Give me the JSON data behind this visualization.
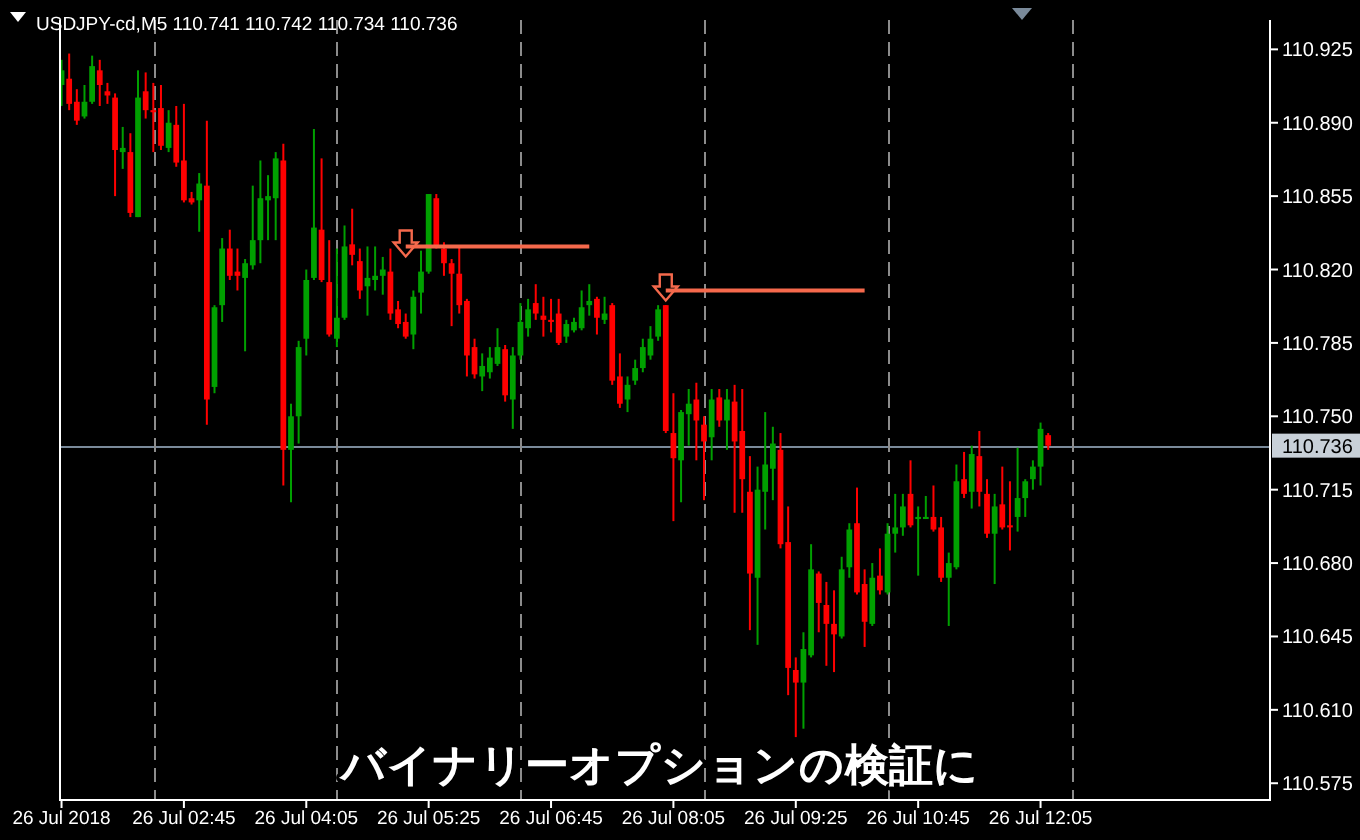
{
  "chart_data": {
    "type": "candlestick",
    "title": "USDJPY-cd,M5  110.741 110.742 110.734 110.736",
    "annotations": [
      "バイナリーオプションの検証に"
    ],
    "x": [
      "2018-07-26T01:25",
      "2018-07-26T01:30",
      "2018-07-26T01:35",
      "2018-07-26T01:40",
      "2018-07-26T01:45",
      "2018-07-26T01:50",
      "2018-07-26T01:55",
      "2018-07-26T02:00",
      "2018-07-26T02:05",
      "2018-07-26T02:10",
      "2018-07-26T02:15",
      "2018-07-26T02:20",
      "2018-07-26T02:25",
      "2018-07-26T02:30",
      "2018-07-26T02:35",
      "2018-07-26T02:40",
      "2018-07-26T02:45",
      "2018-07-26T02:50",
      "2018-07-26T02:55",
      "2018-07-26T03:00",
      "2018-07-26T03:05",
      "2018-07-26T03:10",
      "2018-07-26T03:15",
      "2018-07-26T03:20",
      "2018-07-26T03:25",
      "2018-07-26T03:30",
      "2018-07-26T03:35",
      "2018-07-26T03:40",
      "2018-07-26T03:45",
      "2018-07-26T03:50",
      "2018-07-26T03:55",
      "2018-07-26T04:00",
      "2018-07-26T04:05",
      "2018-07-26T04:10",
      "2018-07-26T04:15",
      "2018-07-26T04:20",
      "2018-07-26T04:25",
      "2018-07-26T04:30",
      "2018-07-26T04:35",
      "2018-07-26T04:40",
      "2018-07-26T04:45",
      "2018-07-26T04:50",
      "2018-07-26T04:55",
      "2018-07-26T05:00",
      "2018-07-26T05:05",
      "2018-07-26T05:10",
      "2018-07-26T05:15",
      "2018-07-26T05:20",
      "2018-07-26T05:25",
      "2018-07-26T05:30",
      "2018-07-26T05:35",
      "2018-07-26T05:40",
      "2018-07-26T05:45",
      "2018-07-26T05:50",
      "2018-07-26T05:55",
      "2018-07-26T06:00",
      "2018-07-26T06:05",
      "2018-07-26T06:10",
      "2018-07-26T06:15",
      "2018-07-26T06:20",
      "2018-07-26T06:25",
      "2018-07-26T06:30",
      "2018-07-26T06:35",
      "2018-07-26T06:40",
      "2018-07-26T06:45",
      "2018-07-26T06:50",
      "2018-07-26T06:55",
      "2018-07-26T07:00",
      "2018-07-26T07:05",
      "2018-07-26T07:10",
      "2018-07-26T07:15",
      "2018-07-26T07:20",
      "2018-07-26T07:25",
      "2018-07-26T07:30",
      "2018-07-26T07:35",
      "2018-07-26T07:40",
      "2018-07-26T07:45",
      "2018-07-26T07:50",
      "2018-07-26T07:55",
      "2018-07-26T08:00",
      "2018-07-26T08:05",
      "2018-07-26T08:10",
      "2018-07-26T08:15",
      "2018-07-26T08:20",
      "2018-07-26T08:25",
      "2018-07-26T08:30",
      "2018-07-26T08:35",
      "2018-07-26T08:40",
      "2018-07-26T08:45",
      "2018-07-26T08:50",
      "2018-07-26T08:55",
      "2018-07-26T09:00",
      "2018-07-26T09:05",
      "2018-07-26T09:10",
      "2018-07-26T09:15",
      "2018-07-26T09:20",
      "2018-07-26T09:25",
      "2018-07-26T09:30",
      "2018-07-26T09:35",
      "2018-07-26T09:40",
      "2018-07-26T09:45",
      "2018-07-26T09:50",
      "2018-07-26T09:55",
      "2018-07-26T10:00",
      "2018-07-26T10:05",
      "2018-07-26T10:10",
      "2018-07-26T10:15",
      "2018-07-26T10:20",
      "2018-07-26T10:25",
      "2018-07-26T10:30",
      "2018-07-26T10:35",
      "2018-07-26T10:40",
      "2018-07-26T10:45",
      "2018-07-26T10:50",
      "2018-07-26T10:55",
      "2018-07-26T11:00",
      "2018-07-26T11:05",
      "2018-07-26T11:10",
      "2018-07-26T11:15",
      "2018-07-26T11:20",
      "2018-07-26T11:25",
      "2018-07-26T11:30",
      "2018-07-26T11:35",
      "2018-07-26T11:40",
      "2018-07-26T11:45",
      "2018-07-26T11:50",
      "2018-07-26T11:55",
      "2018-07-26T12:00",
      "2018-07-26T12:05",
      "2018-07-26T12:10"
    ],
    "ohlc": [
      [
        110.908,
        110.92,
        110.898,
        110.915
      ],
      [
        110.911,
        110.923,
        110.896,
        110.899
      ],
      [
        110.9,
        110.906,
        110.889,
        110.891
      ],
      [
        110.893,
        110.908,
        110.892,
        110.9
      ],
      [
        110.9,
        110.922,
        110.899,
        110.917
      ],
      [
        110.915,
        110.92,
        110.898,
        110.908
      ],
      [
        110.905,
        110.909,
        110.899,
        110.903
      ],
      [
        110.902,
        110.904,
        110.855,
        110.877
      ],
      [
        110.876,
        110.888,
        110.868,
        110.878
      ],
      [
        110.876,
        110.885,
        110.845,
        110.847
      ],
      [
        110.845,
        110.915,
        110.845,
        110.902
      ],
      [
        110.905,
        110.914,
        110.892,
        110.896
      ],
      [
        110.896,
        110.909,
        110.876,
        110.895
      ],
      [
        110.897,
        110.908,
        110.877,
        110.879
      ],
      [
        110.878,
        110.896,
        110.876,
        110.89
      ],
      [
        110.889,
        110.898,
        110.869,
        110.871
      ],
      [
        110.872,
        110.899,
        110.852,
        110.853
      ],
      [
        110.854,
        110.857,
        110.851,
        110.852
      ],
      [
        110.853,
        110.866,
        110.838,
        110.861
      ],
      [
        110.86,
        110.891,
        110.746,
        110.758
      ],
      [
        110.764,
        110.803,
        110.761,
        110.802
      ],
      [
        110.803,
        110.835,
        110.795,
        110.83
      ],
      [
        110.83,
        110.839,
        110.815,
        110.817
      ],
      [
        110.819,
        110.83,
        110.81,
        110.817
      ],
      [
        110.816,
        110.825,
        110.781,
        110.823
      ],
      [
        110.822,
        110.86,
        110.82,
        110.834
      ],
      [
        110.834,
        110.872,
        110.823,
        110.854
      ],
      [
        110.853,
        110.865,
        110.834,
        110.855
      ],
      [
        110.854,
        110.876,
        110.834,
        110.873
      ],
      [
        110.872,
        110.88,
        110.717,
        110.734
      ],
      [
        110.734,
        110.756,
        110.709,
        110.75
      ],
      [
        110.75,
        110.786,
        110.737,
        110.783
      ],
      [
        110.787,
        110.82,
        110.779,
        110.815
      ],
      [
        110.816,
        110.887,
        110.815,
        110.84
      ],
      [
        110.839,
        110.873,
        110.814,
        110.815
      ],
      [
        110.814,
        110.834,
        110.788,
        110.789
      ],
      [
        110.787,
        110.83,
        110.783,
        110.797
      ],
      [
        110.797,
        110.841,
        110.796,
        110.831
      ],
      [
        110.832,
        110.849,
        110.822,
        110.827
      ],
      [
        110.824,
        110.83,
        110.806,
        110.81
      ],
      [
        110.812,
        110.831,
        110.798,
        110.816
      ],
      [
        110.815,
        110.831,
        110.81,
        110.817
      ],
      [
        110.817,
        110.826,
        110.808,
        110.82
      ],
      [
        110.819,
        110.83,
        110.796,
        110.799
      ],
      [
        110.801,
        110.805,
        110.792,
        110.794
      ],
      [
        110.795,
        110.799,
        110.787,
        110.788
      ],
      [
        110.789,
        110.81,
        110.782,
        110.807
      ],
      [
        110.809,
        110.829,
        110.799,
        110.819
      ],
      [
        110.819,
        110.856,
        110.818,
        110.856
      ],
      [
        110.854,
        110.856,
        110.83,
        110.831
      ],
      [
        110.83,
        110.833,
        110.817,
        110.823
      ],
      [
        110.823,
        110.825,
        110.793,
        110.818
      ],
      [
        110.818,
        110.831,
        110.799,
        110.803
      ],
      [
        110.805,
        110.806,
        110.769,
        110.779
      ],
      [
        110.783,
        110.787,
        110.768,
        110.77
      ],
      [
        110.769,
        110.78,
        110.762,
        110.774
      ],
      [
        110.771,
        110.783,
        110.768,
        110.778
      ],
      [
        110.775,
        110.792,
        110.774,
        110.783
      ],
      [
        110.782,
        110.784,
        110.757,
        110.76
      ],
      [
        110.758,
        110.783,
        110.744,
        110.779
      ],
      [
        110.779,
        110.804,
        110.777,
        110.795
      ],
      [
        110.792,
        110.806,
        110.788,
        110.801
      ],
      [
        110.804,
        110.813,
        110.796,
        110.799
      ],
      [
        110.798,
        110.807,
        110.788,
        110.796
      ],
      [
        110.796,
        110.806,
        110.79,
        110.795
      ],
      [
        110.799,
        110.806,
        110.784,
        110.785
      ],
      [
        110.788,
        110.796,
        110.785,
        110.794
      ],
      [
        110.791,
        110.797,
        110.79,
        110.795
      ],
      [
        110.792,
        110.81,
        110.791,
        110.802
      ],
      [
        110.803,
        110.813,
        110.798,
        110.805
      ],
      [
        110.806,
        110.807,
        110.789,
        110.797
      ],
      [
        110.796,
        110.807,
        110.794,
        110.799
      ],
      [
        110.803,
        110.804,
        110.765,
        110.767
      ],
      [
        110.769,
        110.78,
        110.754,
        110.756
      ],
      [
        110.758,
        110.769,
        110.752,
        110.765
      ],
      [
        110.767,
        110.777,
        110.765,
        110.773
      ],
      [
        110.773,
        110.787,
        110.771,
        110.783
      ],
      [
        110.779,
        110.793,
        110.777,
        110.787
      ],
      [
        110.788,
        110.803,
        110.786,
        110.801
      ],
      [
        110.803,
        110.803,
        110.742,
        110.743
      ],
      [
        110.742,
        110.761,
        110.7,
        110.73
      ],
      [
        110.729,
        110.753,
        110.709,
        110.752
      ],
      [
        110.751,
        110.763,
        110.736,
        110.756
      ],
      [
        110.758,
        110.766,
        110.729,
        110.748
      ],
      [
        110.746,
        110.75,
        110.71,
        110.738
      ],
      [
        110.74,
        110.763,
        110.729,
        110.758
      ],
      [
        110.759,
        110.763,
        110.745,
        110.748
      ],
      [
        110.748,
        110.763,
        110.734,
        110.758
      ],
      [
        110.757,
        110.765,
        110.704,
        110.738
      ],
      [
        110.743,
        110.763,
        110.704,
        110.72
      ],
      [
        110.714,
        110.731,
        110.648,
        110.675
      ],
      [
        110.673,
        110.726,
        110.641,
        110.715
      ],
      [
        110.714,
        110.752,
        110.696,
        110.727
      ],
      [
        110.725,
        110.745,
        110.71,
        110.737
      ],
      [
        110.734,
        110.742,
        110.687,
        110.689
      ],
      [
        110.69,
        110.707,
        110.617,
        110.63
      ],
      [
        110.629,
        110.635,
        110.597,
        110.623
      ],
      [
        110.623,
        110.647,
        110.601,
        110.639
      ],
      [
        110.636,
        110.689,
        110.635,
        110.677
      ],
      [
        110.675,
        110.676,
        110.647,
        110.661
      ],
      [
        110.66,
        110.671,
        110.631,
        110.651
      ],
      [
        110.651,
        110.667,
        110.628,
        110.646
      ],
      [
        110.645,
        110.683,
        110.644,
        110.677
      ],
      [
        110.678,
        110.699,
        110.673,
        110.696
      ],
      [
        110.699,
        110.716,
        110.665,
        110.666
      ],
      [
        110.67,
        110.677,
        110.64,
        110.652
      ],
      [
        110.651,
        110.68,
        110.65,
        110.673
      ],
      [
        110.674,
        110.687,
        110.665,
        110.667
      ],
      [
        110.666,
        110.699,
        110.665,
        110.694
      ],
      [
        110.694,
        110.713,
        110.685,
        110.697
      ],
      [
        110.697,
        110.713,
        110.693,
        110.707
      ],
      [
        110.713,
        110.729,
        110.697,
        110.698
      ],
      [
        110.701,
        110.707,
        110.674,
        110.702
      ],
      [
        110.701,
        110.712,
        110.701,
        110.702
      ],
      [
        110.702,
        110.717,
        110.695,
        110.696
      ],
      [
        110.697,
        110.702,
        110.671,
        110.673
      ],
      [
        110.673,
        110.685,
        110.65,
        110.68
      ],
      [
        110.678,
        110.727,
        110.677,
        110.719
      ],
      [
        110.72,
        110.733,
        110.711,
        110.713
      ],
      [
        110.714,
        110.736,
        110.706,
        110.732
      ],
      [
        110.731,
        110.743,
        110.707,
        110.714
      ],
      [
        110.713,
        110.72,
        110.692,
        110.694
      ],
      [
        110.694,
        110.713,
        110.67,
        110.707
      ],
      [
        110.708,
        110.726,
        110.696,
        110.697
      ],
      [
        110.698,
        110.719,
        110.686,
        110.697
      ],
      [
        110.702,
        110.735,
        110.695,
        110.711
      ],
      [
        110.711,
        110.72,
        110.702,
        110.719
      ],
      [
        110.72,
        110.729,
        110.715,
        110.726
      ],
      [
        110.726,
        110.747,
        110.717,
        110.744
      ],
      [
        110.741,
        110.742,
        110.734,
        110.736
      ]
    ],
    "series": [
      {
        "type": "line",
        "color": "#f5694c",
        "x": [
          "2018-07-26T05:10",
          "2018-07-26T07:10"
        ],
        "values": [
          110.831,
          110.831
        ]
      },
      {
        "type": "line",
        "color": "#f5694c",
        "x": [
          "2018-07-26T08:00",
          "2018-07-26T10:10"
        ],
        "values": [
          110.81,
          110.81
        ]
      }
    ],
    "xlim": [
      "2018-07-26T01:24",
      "2018-07-26T14:35"
    ],
    "ylim": [
      110.567,
      110.939
    ],
    "xticks": [
      {
        "value": "2018-07-26T01:25",
        "label": "26 Jul 2018"
      },
      {
        "value": "2018-07-26T02:45",
        "label": "26 Jul 02:45"
      },
      {
        "value": "2018-07-26T04:05",
        "label": "26 Jul 04:05"
      },
      {
        "value": "2018-07-26T05:25",
        "label": "26 Jul 05:25"
      },
      {
        "value": "2018-07-26T06:45",
        "label": "26 Jul 06:45"
      },
      {
        "value": "2018-07-26T08:05",
        "label": "26 Jul 08:05"
      },
      {
        "value": "2018-07-26T09:25",
        "label": "26 Jul 09:25"
      },
      {
        "value": "2018-07-26T10:45",
        "label": "26 Jul 10:45"
      },
      {
        "value": "2018-07-26T12:05",
        "label": "26 Jul 12:05"
      }
    ],
    "yticks": [
      110.925,
      {
        "value": 110.89,
        "label": "110.890"
      },
      110.855,
      {
        "value": 110.82,
        "label": "110.820"
      },
      110.785,
      {
        "value": 110.75,
        "label": "110.750"
      },
      110.715,
      {
        "value": 110.68,
        "label": "110.680"
      },
      110.645,
      {
        "value": 110.61,
        "label": "110.610"
      },
      110.575
    ],
    "ref_lines": [
      {
        "axis": "y",
        "value": 110.736,
        "label": "110.736",
        "color": "#7a8a9a",
        "line_style": "solid"
      },
      {
        "axis": "x",
        "value": "2018-07-26T02:25",
        "color": "#8c8c8c",
        "line_style": "dashed"
      },
      {
        "axis": "x",
        "value": "2018-07-26T04:25",
        "color": "#8c8c8c",
        "line_style": "dashed"
      },
      {
        "axis": "x",
        "value": "2018-07-26T06:25",
        "color": "#8c8c8c",
        "line_style": "dashed"
      },
      {
        "axis": "x",
        "value": "2018-07-26T08:25",
        "color": "#8c8c8c",
        "line_style": "dashed"
      },
      {
        "axis": "x",
        "value": "2018-07-26T10:25",
        "color": "#8c8c8c",
        "line_style": "dashed"
      },
      {
        "axis": "x",
        "value": "2018-07-26T12:25",
        "color": "#8c8c8c",
        "line_style": "dashed"
      }
    ]
  }
}
